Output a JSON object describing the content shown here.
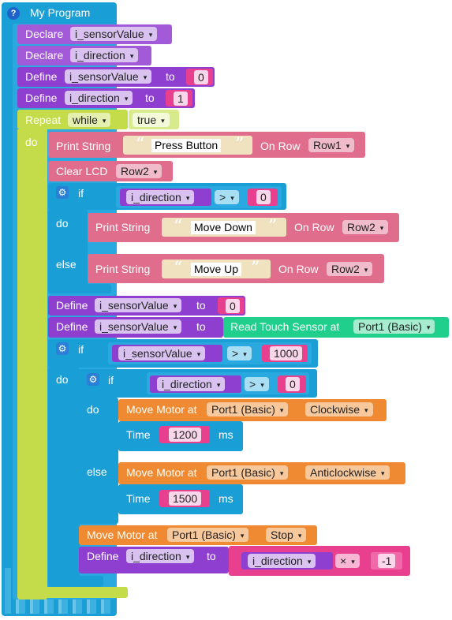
{
  "program": {
    "title": "My Program",
    "help_icon": "?"
  },
  "declares": [
    {
      "keyword": "Declare",
      "variable": "i_sensorValue"
    },
    {
      "keyword": "Declare",
      "variable": "i_direction"
    }
  ],
  "defines_init": [
    {
      "keyword": "Define",
      "variable": "i_sensorValue",
      "to": "to",
      "value": "0"
    },
    {
      "keyword": "Define",
      "variable": "i_direction",
      "to": "to",
      "value": "1"
    }
  ],
  "repeat": {
    "keyword": "Repeat",
    "mode": "while",
    "condition": "true",
    "do": "do"
  },
  "print1": {
    "keyword": "Print String",
    "text": "Press Button",
    "on_row": "On Row",
    "row": "Row1"
  },
  "clear_lcd": {
    "keyword": "Clear LCD",
    "row": "Row2"
  },
  "if1": {
    "keyword": "if",
    "variable": "i_direction",
    "op": ">",
    "value": "0",
    "do": "do",
    "else": "else",
    "print_do": {
      "keyword": "Print String",
      "text": "Move Down",
      "on_row": "On Row",
      "row": "Row2"
    },
    "print_else": {
      "keyword": "Print String",
      "text": "Move Up",
      "on_row": "On Row",
      "row": "Row2"
    }
  },
  "define3": {
    "keyword": "Define",
    "variable": "i_sensorValue",
    "to": "to",
    "value": "0"
  },
  "define4": {
    "keyword": "Define",
    "variable": "i_sensorValue",
    "to": "to",
    "sensor": "Read Touch Sensor at",
    "port": "Port1 (Basic)"
  },
  "if2": {
    "keyword": "if",
    "variable": "i_sensorValue",
    "op": ">",
    "value": "1000",
    "do": "do"
  },
  "if3": {
    "keyword": "if",
    "variable": "i_direction",
    "op": ">",
    "value": "0",
    "do": "do",
    "else": "else",
    "motor_do": {
      "keyword": "Move Motor at",
      "port": "Port1 (Basic)",
      "direction": "Clockwise",
      "time_label": "Time",
      "time": "1200",
      "unit": "ms"
    },
    "motor_else": {
      "keyword": "Move Motor at",
      "port": "Port1 (Basic)",
      "direction": "Anticlockwise",
      "time_label": "Time",
      "time": "1500",
      "unit": "ms"
    }
  },
  "motor_stop": {
    "keyword": "Move Motor at",
    "port": "Port1 (Basic)",
    "direction": "Stop"
  },
  "define5": {
    "keyword": "Define",
    "variable": "i_direction",
    "to": "to",
    "var2": "i_direction",
    "op": "×",
    "value": "-1"
  },
  "colors": {
    "program": "#1a9ed6",
    "variable": "#a25ad9",
    "logic": "#c4dc4a",
    "lcd": "#df6d8b",
    "motor": "#f08a32",
    "sensor": "#1fcf8b",
    "number": "#e8408e",
    "text": "#f1e2bf"
  }
}
